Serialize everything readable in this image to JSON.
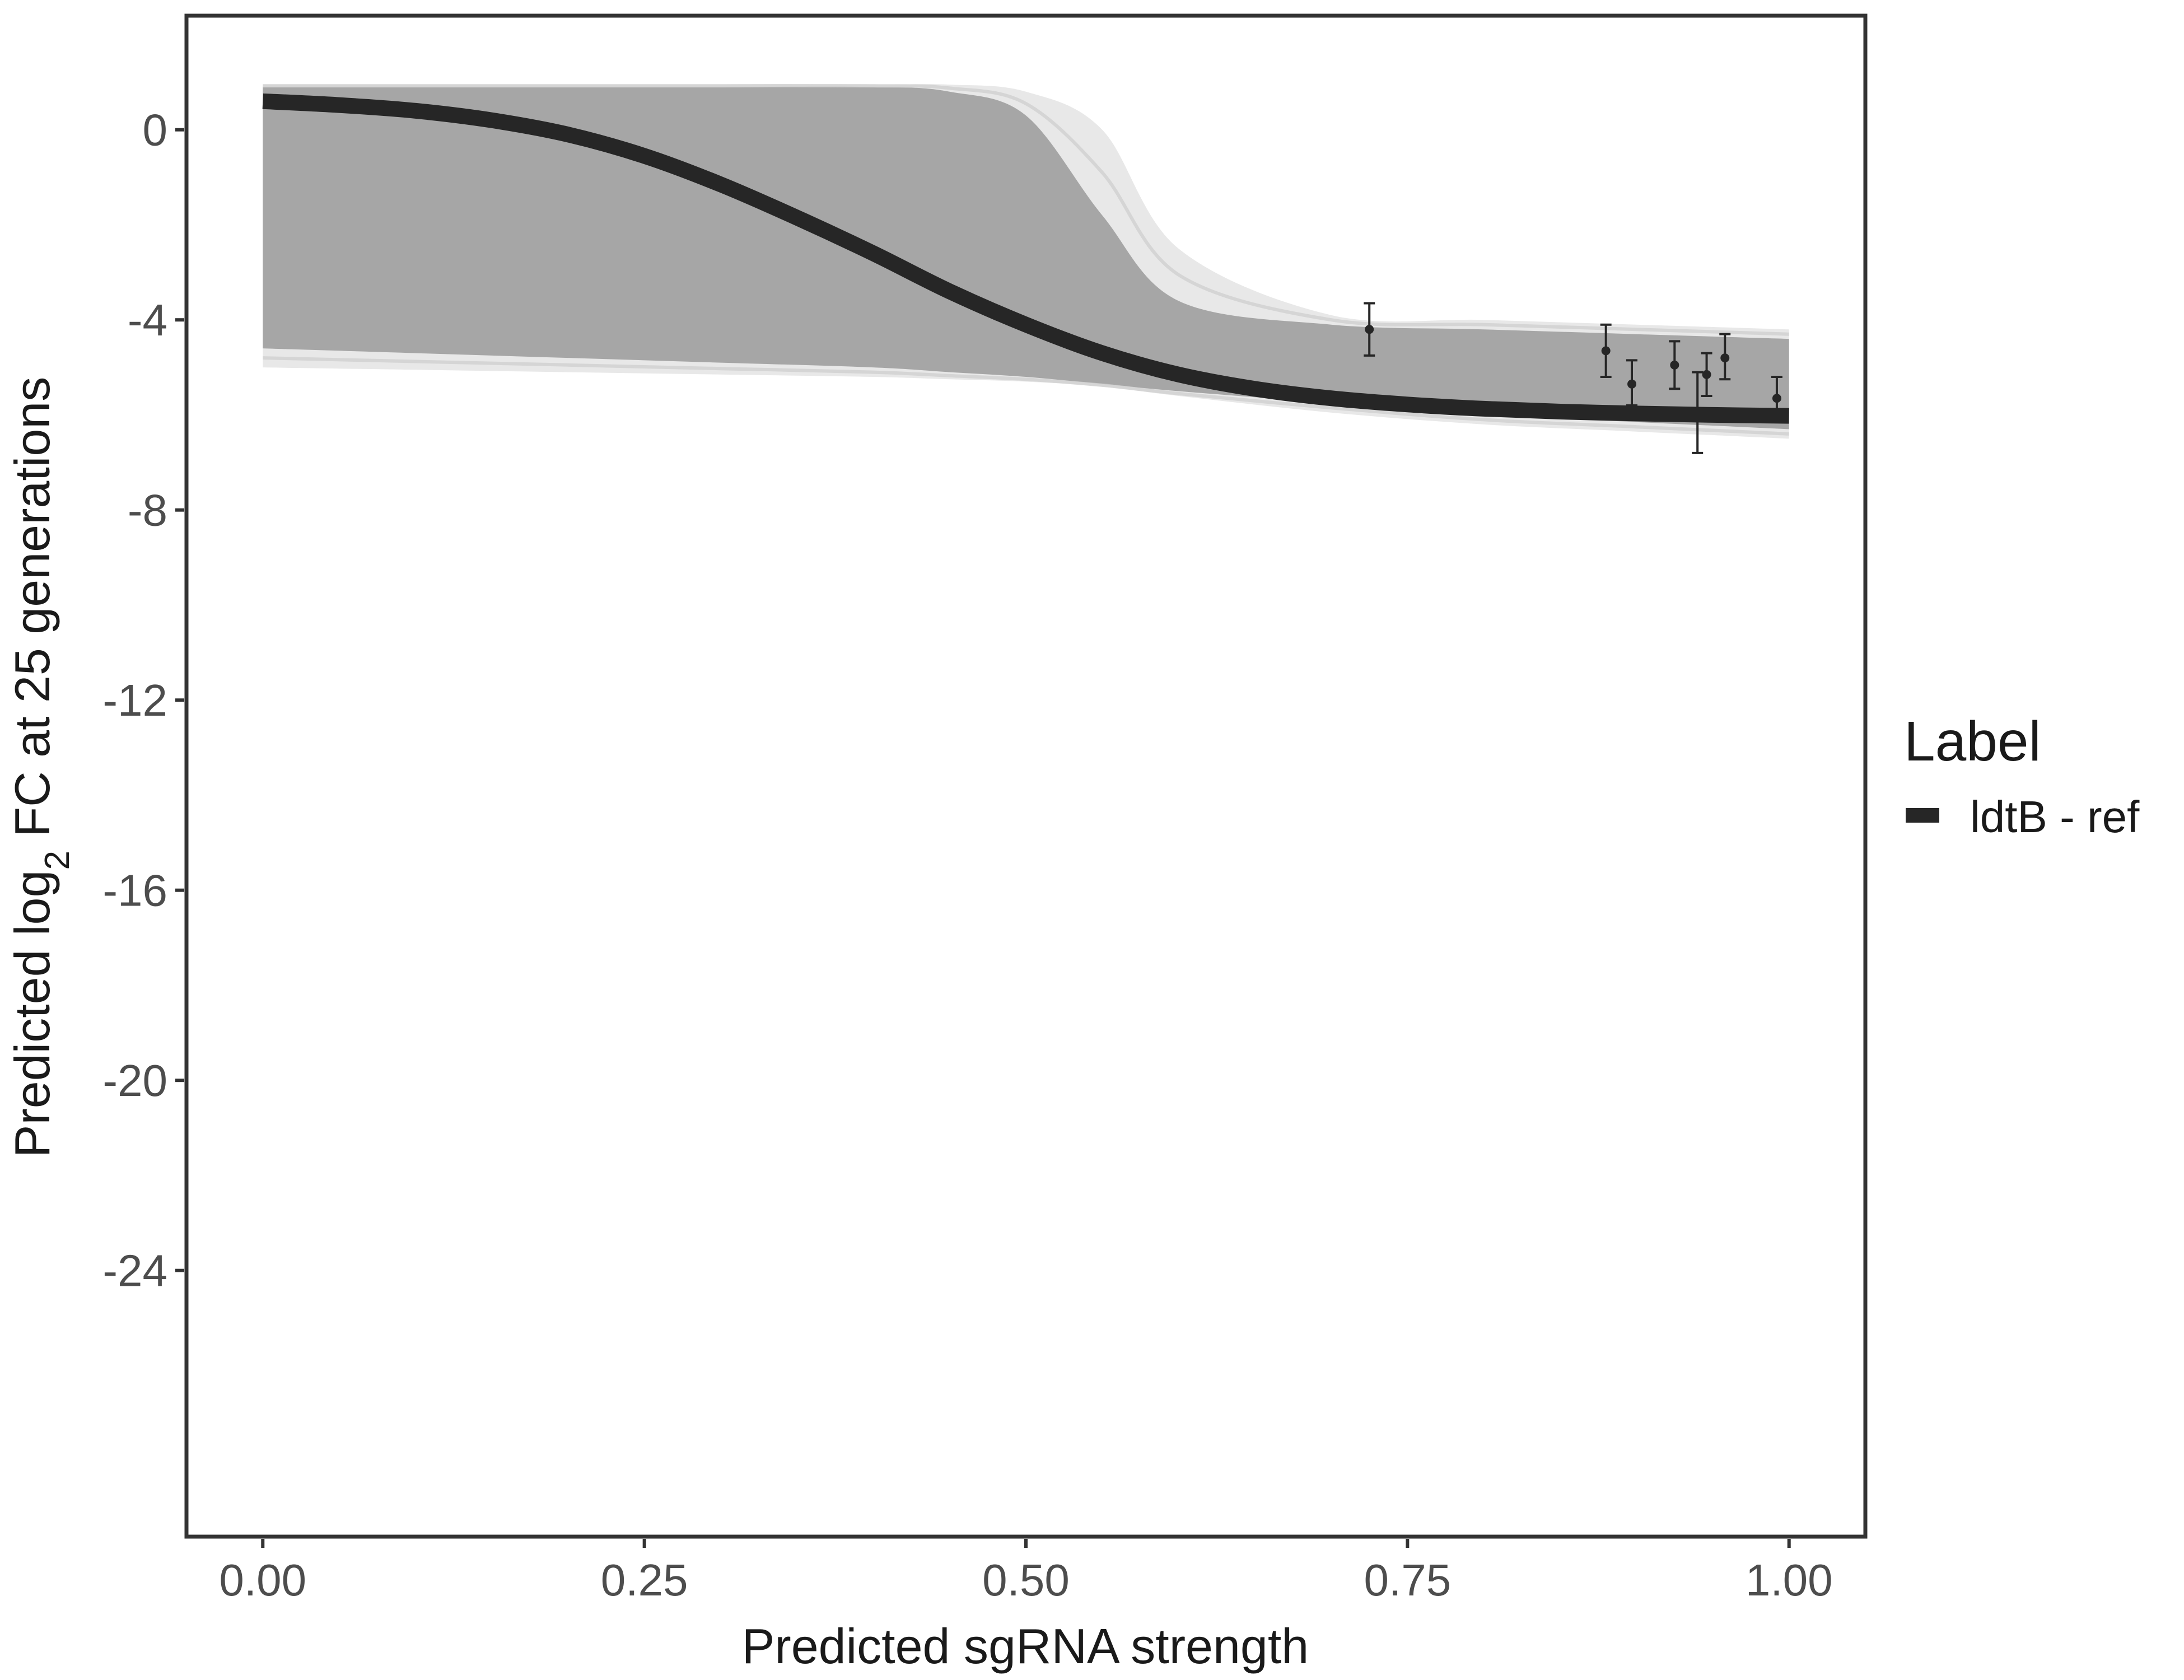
{
  "chart_data": {
    "type": "line",
    "title": "",
    "xlabel": "Predicted sgRNA strength",
    "ylabel_parts": [
      "Predicted  log",
      "2",
      " FC at 25 generations"
    ],
    "xlim": [
      -0.05,
      1.05
    ],
    "ylim": [
      -29.6,
      2.4
    ],
    "x_ticks": [
      0.0,
      0.25,
      0.5,
      0.75,
      1.0
    ],
    "x_tick_labels": [
      "0.00",
      "0.25",
      "0.50",
      "0.75",
      "1.00"
    ],
    "y_ticks": [
      0,
      -4,
      -8,
      -12,
      -16,
      -20,
      -24
    ],
    "y_tick_labels": [
      "0",
      "-4",
      "-8",
      "-12",
      "-16",
      "-20",
      "-24"
    ],
    "grid": false,
    "legend": {
      "title": "Label",
      "position": "right",
      "entries": [
        {
          "name": "ldtB - ref",
          "color": "#262626"
        }
      ]
    },
    "series": [
      {
        "name": "ldtB - ref",
        "color": "#262626",
        "x": [
          0.0,
          0.05,
          0.1,
          0.15,
          0.2,
          0.25,
          0.3,
          0.35,
          0.4,
          0.45,
          0.5,
          0.55,
          0.6,
          0.65,
          0.7,
          0.75,
          0.8,
          0.85,
          0.9,
          0.95,
          1.0
        ],
        "y": [
          0.6,
          0.52,
          0.4,
          0.2,
          -0.1,
          -0.55,
          -1.15,
          -1.85,
          -2.6,
          -3.4,
          -4.1,
          -4.7,
          -5.15,
          -5.45,
          -5.65,
          -5.78,
          -5.87,
          -5.93,
          -5.97,
          -6.0,
          -6.02
        ]
      }
    ],
    "posterior_band": {
      "color": "#a6a6a6",
      "x": [
        0.0,
        0.1,
        0.2,
        0.3,
        0.4,
        0.45,
        0.5,
        0.55,
        0.6,
        0.7,
        0.8,
        0.9,
        1.0
      ],
      "upper": [
        0.9,
        0.9,
        0.9,
        0.9,
        0.9,
        0.8,
        0.3,
        -1.8,
        -3.6,
        -4.1,
        -4.2,
        -4.3,
        -4.4
      ],
      "lower": [
        -4.6,
        -4.7,
        -4.8,
        -4.9,
        -5.0,
        -5.1,
        -5.2,
        -5.35,
        -5.5,
        -5.75,
        -6.0,
        -6.15,
        -6.3
      ],
      "faint_upper": [
        0.95,
        0.95,
        0.95,
        0.95,
        0.95,
        0.95,
        0.8,
        0.0,
        -2.5,
        -3.9,
        -4.0,
        -4.1,
        -4.2
      ],
      "faint_lower": [
        -5.0,
        -5.05,
        -5.1,
        -5.15,
        -5.2,
        -5.25,
        -5.3,
        -5.4,
        -5.6,
        -5.95,
        -6.2,
        -6.35,
        -6.5
      ]
    },
    "observed_points": {
      "color": "#262626",
      "x": [
        0.725,
        0.88,
        0.897,
        0.925,
        0.94,
        0.946,
        0.958,
        0.992
      ],
      "y": [
        -4.2,
        -4.65,
        -5.35,
        -4.95,
        -5.95,
        -5.15,
        -4.8,
        -5.65
      ],
      "ymin": [
        -4.75,
        -5.2,
        -5.8,
        -5.45,
        -6.8,
        -5.6,
        -5.25,
        -6.05
      ],
      "ymax": [
        -3.65,
        -4.1,
        -4.85,
        -4.45,
        -5.1,
        -4.7,
        -4.3,
        -5.2
      ]
    }
  }
}
